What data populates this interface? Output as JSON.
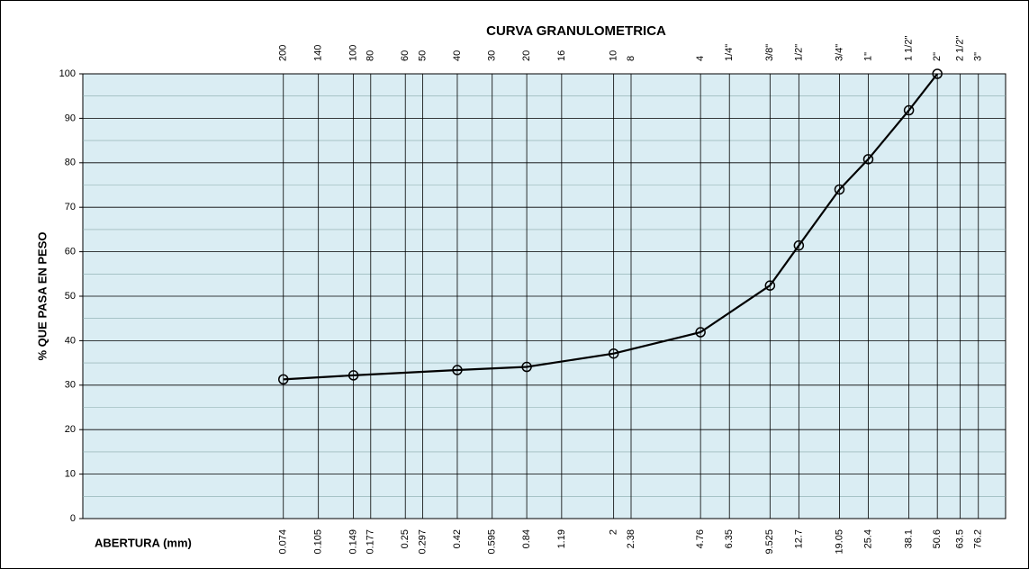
{
  "chart_data": {
    "type": "line",
    "title": "CURVA GRANULOMETRICA",
    "ylabel": "% QUE PASA EN PESO",
    "xlabel": "ABERTURA (mm)",
    "x": [
      0.074,
      0.149,
      0.42,
      0.84,
      2,
      4.76,
      9.525,
      12.7,
      19.05,
      25.4,
      38.1,
      50.6
    ],
    "values": [
      31.3,
      32.2,
      33.4,
      34.1,
      37.1,
      41.9,
      52.4,
      61.4,
      74.0,
      80.8,
      91.8,
      100
    ],
    "color": "#000000",
    "xscale": "log",
    "xlim": [
      0.01,
      100
    ],
    "xticks": [
      0.074,
      0.105,
      0.149,
      0.177,
      0.25,
      0.297,
      0.42,
      0.595,
      0.84,
      1.19,
      2,
      2.38,
      4.76,
      6.35,
      9.525,
      12.7,
      19.05,
      25.4,
      38.1,
      50.6,
      63.5,
      76.2
    ],
    "top_tick_labels": [
      "200",
      "140",
      "100",
      "80",
      "60",
      "50",
      "40",
      "30",
      "20",
      "16",
      "10",
      "8",
      "4",
      "1/4\"",
      "3/8\"",
      "1/2\"",
      "3/4\"",
      "1\"",
      "1 1/2\"",
      "2\"",
      "2 1/2\"",
      "3\""
    ],
    "ylim": [
      0,
      100
    ],
    "yticks": [
      0,
      10,
      20,
      30,
      40,
      50,
      60,
      70,
      80,
      90,
      100
    ],
    "yminorticks": [
      5,
      15,
      25,
      35,
      45,
      55,
      65,
      75,
      85,
      95
    ],
    "grid": true
  }
}
